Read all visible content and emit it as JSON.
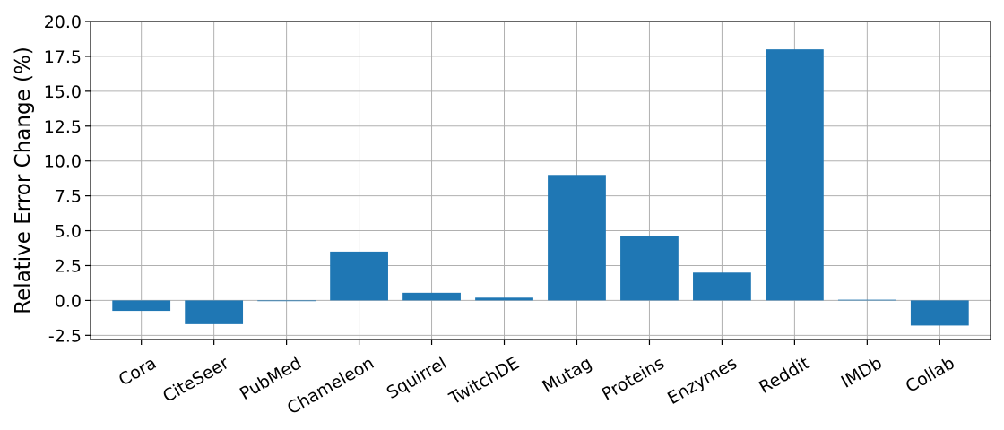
{
  "chart_data": {
    "type": "bar",
    "categories": [
      "Cora",
      "CiteSeer",
      "PubMed",
      "Chameleon",
      "Squirrel",
      "TwitchDE",
      "Mutag",
      "Proteins",
      "Enzymes",
      "Reddit",
      "IMDb",
      "Collab"
    ],
    "values": [
      -0.75,
      -1.7,
      0.0,
      3.5,
      0.55,
      0.2,
      9.0,
      4.65,
      2.0,
      18.0,
      0.05,
      -1.8
    ],
    "title": "",
    "xlabel": "",
    "ylabel": "Relative Error Change (%)",
    "ylim": [
      -2.8,
      20.0
    ],
    "yticks": [
      "-2.5",
      "0.0",
      "2.5",
      "5.0",
      "7.5",
      "10.0",
      "12.5",
      "15.0",
      "17.5",
      "20.0"
    ],
    "ytick_values": [
      -2.5,
      0.0,
      2.5,
      5.0,
      7.5,
      10.0,
      12.5,
      15.0,
      17.5,
      20.0
    ],
    "grid": true,
    "bar_color": "#1f77b4",
    "xtick_rotation_deg": 30
  }
}
